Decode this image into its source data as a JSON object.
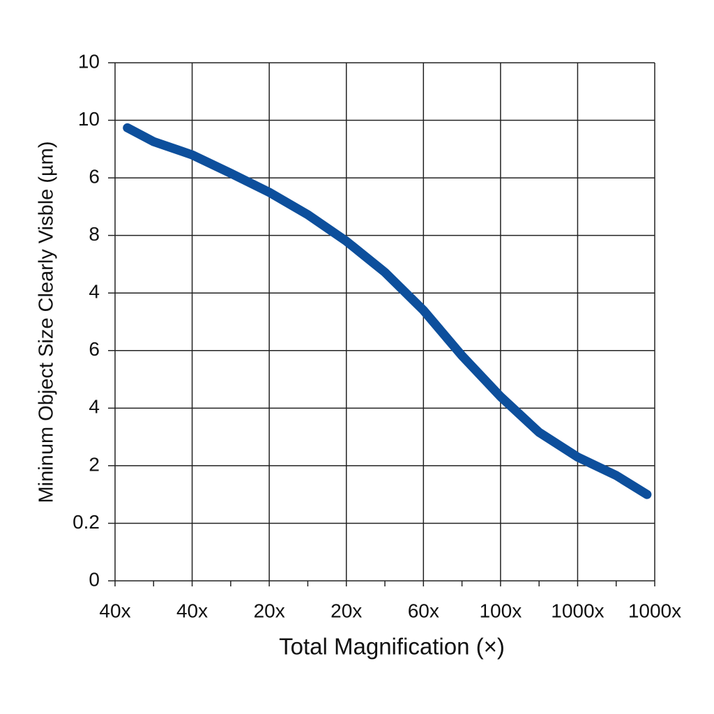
{
  "chart_data": {
    "type": "line",
    "x_label": "Total Magnification (×)",
    "y_label": "Mininum Object Size  Clearly Visble (µm)",
    "x": [
      0.16,
      0.5,
      1,
      1.5,
      2,
      2.5,
      3,
      3.5,
      4,
      4.5,
      5,
      5.5,
      6,
      6.5,
      6.9
    ],
    "series": [
      {
        "color": "#0d4f9c",
        "values": [
          7.87,
          7.63,
          7.4,
          7.08,
          6.75,
          6.36,
          5.9,
          5.36,
          4.7,
          3.91,
          3.2,
          2.58,
          2.15,
          1.83,
          1.5
        ]
      }
    ],
    "xlim": [
      0,
      7
    ],
    "xticks": [
      {
        "value": 0,
        "label": "40x"
      },
      {
        "value": 1,
        "label": "40x"
      },
      {
        "value": 2,
        "label": "20x"
      },
      {
        "value": 3,
        "label": "20x"
      },
      {
        "value": 4,
        "label": "60x"
      },
      {
        "value": 5,
        "label": "100x"
      },
      {
        "value": 6,
        "label": "1000x"
      },
      {
        "value": 7,
        "label": "1000x"
      }
    ],
    "ylim": [
      0,
      9
    ],
    "yticks": [
      0,
      {
        "value": 1,
        "label": "0.2"
      },
      2,
      {
        "value": 3,
        "label": "4"
      },
      {
        "value": 4,
        "label": "6"
      },
      {
        "value": 5,
        "label": "4"
      },
      {
        "value": 6,
        "label": "8"
      },
      {
        "value": 7,
        "label": "6"
      },
      {
        "value": 8,
        "label": "10"
      },
      {
        "value": 9,
        "label": "10"
      }
    ],
    "grid": true
  }
}
